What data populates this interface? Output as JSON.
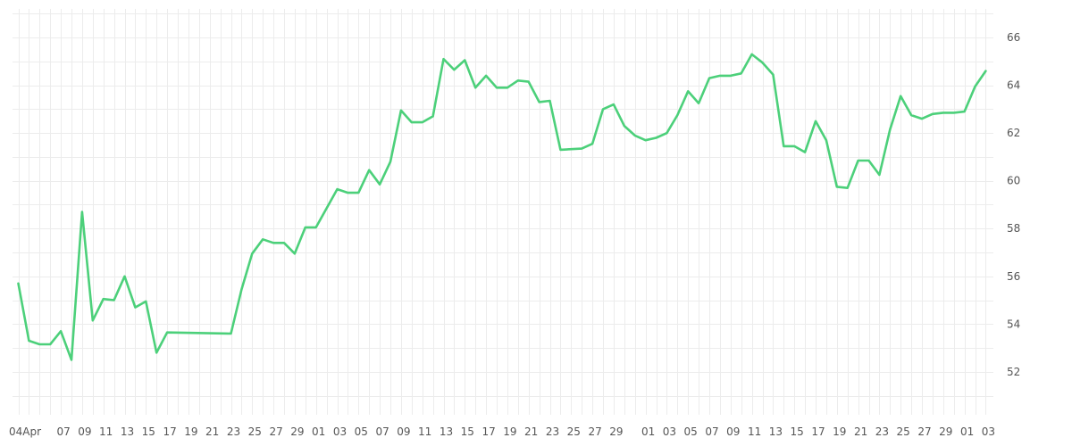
{
  "chart_data": {
    "type": "line",
    "title": "",
    "xlabel": "",
    "ylabel": "",
    "ylim": [
      50.2,
      67.2
    ],
    "grid": true,
    "legend": "none",
    "line_color": "#4cd07a",
    "y_ticks": [
      52,
      54,
      56,
      58,
      60,
      62,
      64,
      66
    ],
    "x_tick_labels": [
      "04Apr",
      "07",
      "09",
      "11",
      "13",
      "15",
      "17",
      "19",
      "21",
      "23",
      "25",
      "27",
      "29",
      "01",
      "03",
      "05",
      "07",
      "09",
      "11",
      "13",
      "15",
      "17",
      "19",
      "21",
      "23",
      "25",
      "27",
      "29",
      "01",
      "03",
      "05",
      "07",
      "09",
      "11",
      "13",
      "15",
      "17",
      "19",
      "21",
      "23",
      "25",
      "27",
      "29",
      "01",
      "03"
    ],
    "series": [
      {
        "values": [
          [
            0,
            55.7
          ],
          [
            1,
            53.3
          ],
          [
            2,
            53.15
          ],
          [
            3,
            53.15
          ],
          [
            4,
            53.7
          ],
          [
            5,
            52.5
          ],
          [
            6,
            58.7
          ],
          [
            7,
            54.15
          ],
          [
            8,
            55.05
          ],
          [
            9,
            55.0
          ],
          [
            10,
            56.0
          ],
          [
            11,
            54.7
          ],
          [
            12,
            54.95
          ],
          [
            13,
            52.8
          ],
          [
            14,
            53.65
          ],
          [
            20,
            53.6
          ],
          [
            21,
            55.45
          ],
          [
            22,
            56.95
          ],
          [
            23,
            57.55
          ],
          [
            24,
            57.4
          ],
          [
            25,
            57.4
          ],
          [
            26,
            56.95
          ],
          [
            27,
            58.05
          ],
          [
            28,
            58.05
          ],
          [
            30,
            59.65
          ],
          [
            31,
            59.5
          ],
          [
            32,
            59.5
          ],
          [
            33,
            60.45
          ],
          [
            34,
            59.85
          ],
          [
            35,
            60.8
          ],
          [
            36,
            62.95
          ],
          [
            37,
            62.45
          ],
          [
            38,
            62.45
          ],
          [
            39,
            62.7
          ],
          [
            40,
            65.1
          ],
          [
            41,
            64.65
          ],
          [
            42,
            65.05
          ],
          [
            43,
            63.9
          ],
          [
            44,
            64.4
          ],
          [
            45,
            63.9
          ],
          [
            46,
            63.9
          ],
          [
            47,
            64.2
          ],
          [
            48,
            64.15
          ],
          [
            49,
            63.3
          ],
          [
            50,
            63.35
          ],
          [
            51,
            61.3
          ],
          [
            53,
            61.35
          ],
          [
            54,
            61.55
          ],
          [
            55,
            63.0
          ],
          [
            56,
            63.2
          ],
          [
            57,
            62.3
          ],
          [
            58,
            61.9
          ],
          [
            59,
            61.7
          ],
          [
            60,
            61.8
          ],
          [
            61,
            62.0
          ],
          [
            62,
            62.75
          ],
          [
            63,
            63.75
          ],
          [
            64,
            63.25
          ],
          [
            65,
            64.3
          ],
          [
            66,
            64.4
          ],
          [
            67,
            64.4
          ],
          [
            68,
            64.5
          ],
          [
            69,
            65.3
          ],
          [
            70,
            64.95
          ],
          [
            71,
            64.45
          ],
          [
            72,
            61.45
          ],
          [
            73,
            61.45
          ],
          [
            74,
            61.2
          ],
          [
            75,
            62.5
          ],
          [
            76,
            61.7
          ],
          [
            77,
            59.75
          ],
          [
            78,
            59.7
          ],
          [
            79,
            60.85
          ],
          [
            80,
            60.85
          ],
          [
            81,
            60.25
          ],
          [
            82,
            62.15
          ],
          [
            83,
            63.55
          ],
          [
            84,
            62.75
          ],
          [
            85,
            62.6
          ],
          [
            86,
            62.8
          ],
          [
            87,
            62.85
          ],
          [
            88,
            62.85
          ],
          [
            89,
            62.9
          ],
          [
            90,
            63.95
          ],
          [
            91,
            64.6
          ]
        ]
      }
    ]
  }
}
